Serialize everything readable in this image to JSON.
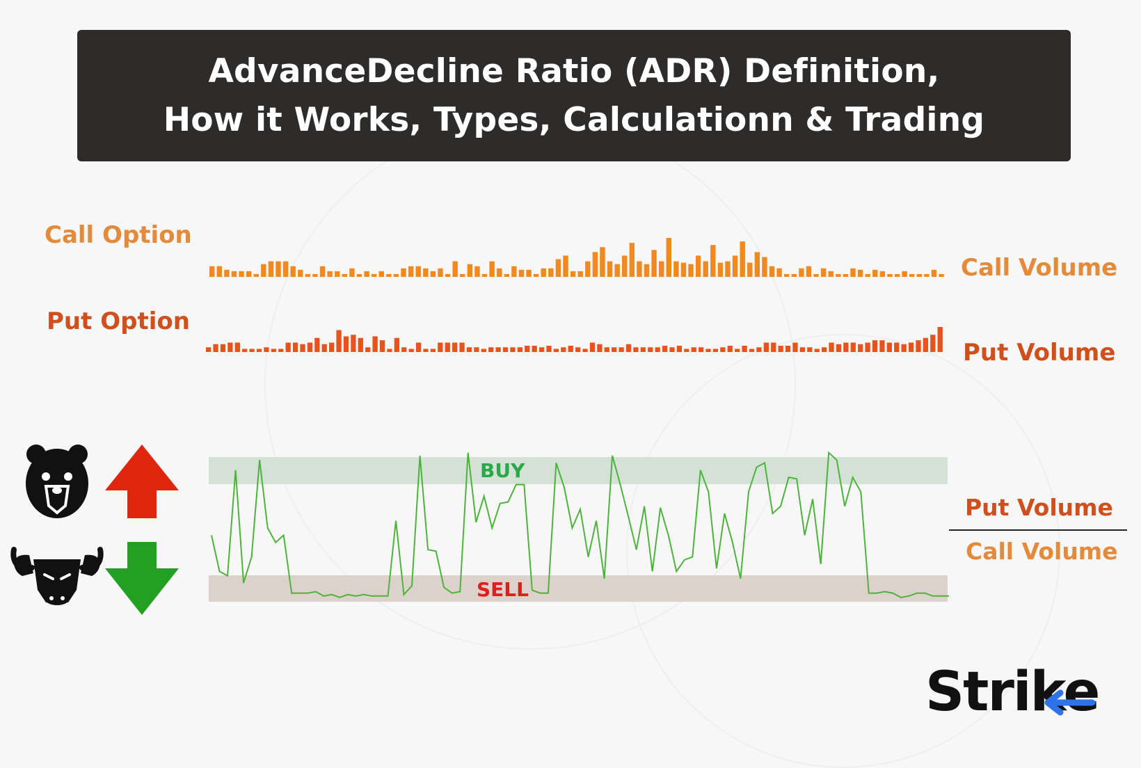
{
  "title": {
    "line1": "AdvanceDecline Ratio (ADR) Definition,",
    "line2": "How it Works, Types, Calculationn & Trading"
  },
  "labels": {
    "call_option": "Call Option",
    "put_option": "Put Option",
    "call_volume": "Call Volume",
    "put_volume": "Put Volume",
    "ratio_numerator": "Put Volume",
    "ratio_denominator": "Call Volume",
    "buy": "BUY",
    "sell": "SELL"
  },
  "logo": {
    "text": "Strike"
  },
  "colors": {
    "call_bars": "#f0891f",
    "put_bars": "#e6531c",
    "ratio_line": "#4cb33a",
    "buy_band": "#d3e2d5",
    "sell_band": "#ddd1cc",
    "buy_text": "#2aa84a",
    "sell_text": "#e01e1e",
    "up_arrow": "#e0260e",
    "down_arrow": "#21a021",
    "title_bg": "#2e2b2b"
  },
  "icons": [
    "bear-icon",
    "up-arrow-icon",
    "bull-icon",
    "down-arrow-icon"
  ],
  "chart_data": [
    {
      "type": "bar",
      "series": [
        {
          "name": "Call Volume",
          "values": [
            15,
            15,
            10,
            8,
            8,
            8,
            4,
            18,
            22,
            22,
            22,
            15,
            10,
            4,
            4,
            15,
            8,
            8,
            4,
            12,
            4,
            8,
            4,
            8,
            4,
            4,
            12,
            15,
            15,
            12,
            8,
            12,
            4,
            22,
            4,
            18,
            15,
            4,
            22,
            12,
            4,
            15,
            10,
            10,
            4,
            12,
            12,
            25,
            30,
            8,
            8,
            22,
            35,
            42,
            22,
            18,
            30,
            48,
            22,
            18,
            38,
            22,
            55,
            22,
            20,
            18,
            30,
            22,
            45,
            20,
            22,
            30,
            50,
            20,
            35,
            28,
            15,
            12,
            4,
            4,
            12,
            15,
            4,
            12,
            8,
            4,
            4,
            12,
            10,
            4,
            10,
            8,
            4,
            4,
            8,
            4,
            4,
            4,
            10,
            4
          ]
        }
      ]
    },
    {
      "type": "bar",
      "series": [
        {
          "name": "Put Volume",
          "values": [
            6,
            10,
            10,
            12,
            12,
            4,
            4,
            4,
            6,
            4,
            4,
            12,
            12,
            10,
            12,
            18,
            10,
            12,
            28,
            20,
            22,
            18,
            6,
            20,
            15,
            4,
            18,
            6,
            4,
            12,
            4,
            4,
            12,
            12,
            12,
            12,
            6,
            6,
            4,
            6,
            6,
            6,
            6,
            6,
            8,
            8,
            6,
            8,
            4,
            6,
            8,
            6,
            4,
            12,
            10,
            6,
            6,
            6,
            10,
            6,
            6,
            6,
            6,
            8,
            6,
            8,
            4,
            6,
            6,
            4,
            4,
            6,
            8,
            4,
            8,
            4,
            6,
            12,
            12,
            8,
            8,
            12,
            6,
            6,
            4,
            6,
            12,
            10,
            12,
            12,
            10,
            12,
            15,
            15,
            12,
            12,
            10,
            12,
            15,
            18,
            22,
            32
          ]
        }
      ]
    },
    {
      "type": "line",
      "series": [
        {
          "name": "Put Volume / Call Volume",
          "values": [
            0.45,
            0.2,
            0.17,
            0.9,
            0.12,
            0.3,
            0.97,
            0.5,
            0.4,
            0.45,
            0.05,
            0.05,
            0.05,
            0.06,
            0.03,
            0.04,
            0.02,
            0.04,
            0.03,
            0.04,
            0.03,
            0.03,
            0.03,
            0.55,
            0.04,
            0.1,
            1.0,
            0.35,
            0.34,
            0.09,
            0.05,
            0.06,
            1.02,
            0.54,
            0.72,
            0.5,
            0.67,
            0.68,
            0.8,
            0.8,
            0.07,
            0.05,
            0.05,
            0.95,
            0.78,
            0.5,
            0.63,
            0.3,
            0.55,
            0.15,
            1.0,
            0.8,
            0.58,
            0.35,
            0.65,
            0.2,
            0.64,
            0.45,
            0.2,
            0.28,
            0.3,
            0.9,
            0.75,
            0.22,
            0.6,
            0.4,
            0.15,
            0.75,
            0.92,
            0.95,
            0.6,
            0.65,
            0.85,
            0.84,
            0.45,
            0.7,
            0.25,
            1.02,
            0.97,
            0.65,
            0.85,
            0.75,
            0.05,
            0.05,
            0.06,
            0.05,
            0.02,
            0.03,
            0.05,
            0.05,
            0.03,
            0.03,
            0.03
          ]
        }
      ],
      "bands": [
        {
          "label": "BUY",
          "range": [
            0.9,
            1.0
          ]
        },
        {
          "label": "SELL",
          "range": [
            0.0,
            0.1
          ]
        }
      ],
      "ylim": [
        0,
        1.05
      ]
    }
  ]
}
